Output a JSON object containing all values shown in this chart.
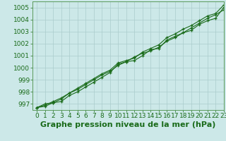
{
  "title": "Graphe pression niveau de la mer (hPa)",
  "background_color": "#cce8e8",
  "grid_color": "#aacccc",
  "line_color": "#1a6b1a",
  "marker_color": "#1a6b1a",
  "xlim": [
    -0.5,
    23
  ],
  "ylim": [
    996.5,
    1005.5
  ],
  "yticks": [
    997,
    998,
    999,
    1000,
    1001,
    1002,
    1003,
    1004,
    1005
  ],
  "xticks": [
    0,
    1,
    2,
    3,
    4,
    5,
    6,
    7,
    8,
    9,
    10,
    11,
    12,
    13,
    14,
    15,
    16,
    17,
    18,
    19,
    20,
    21,
    22,
    23
  ],
  "series": [
    [
      996.7,
      996.8,
      997.1,
      997.2,
      997.7,
      998.0,
      998.4,
      998.8,
      999.2,
      999.6,
      1000.3,
      1000.5,
      1000.6,
      1001.0,
      1001.5,
      1001.6,
      1002.3,
      1002.6,
      1002.9,
      1003.1,
      1003.6,
      1003.9,
      1004.1,
      1005.0
    ],
    [
      996.7,
      997.0,
      997.1,
      997.4,
      997.9,
      998.3,
      998.7,
      999.1,
      999.5,
      999.8,
      1000.4,
      1000.6,
      1000.8,
      1001.3,
      1001.6,
      1001.9,
      1002.5,
      1002.8,
      1003.2,
      1003.5,
      1003.9,
      1004.3,
      1004.5,
      1005.2
    ],
    [
      996.7,
      996.9,
      997.2,
      997.5,
      997.9,
      998.2,
      998.6,
      999.0,
      999.4,
      999.7,
      1000.2,
      1000.5,
      1000.9,
      1001.2,
      1001.4,
      1001.7,
      1002.2,
      1002.5,
      1002.9,
      1003.3,
      1003.7,
      1004.1,
      1004.4,
      1004.8
    ]
  ],
  "title_fontsize": 8,
  "tick_fontsize": 6.5,
  "title_color": "#1a6b1a",
  "tick_color": "#1a6b1a",
  "spine_color": "#5a9a5a"
}
